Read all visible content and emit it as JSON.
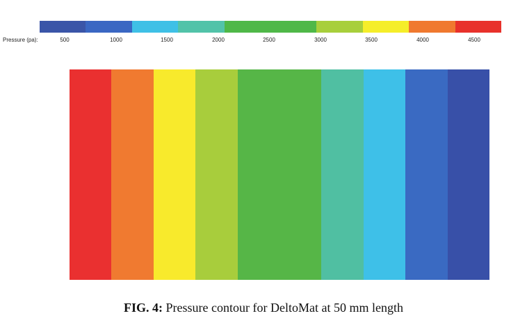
{
  "legend": {
    "label": "Pressure (pa):",
    "ticks": [
      "500",
      "1000",
      "1500",
      "2000",
      "2500",
      "3000",
      "3500",
      "4000",
      "4500"
    ],
    "colors": [
      "#3a55a8",
      "#3a67c3",
      "#3fc0e6",
      "#52c3a9",
      "#4fb848",
      "#4fb848",
      "#a8cf3c",
      "#f5ee2a",
      "#f0792f",
      "#e8312b"
    ]
  },
  "contour": {
    "bands": [
      {
        "name": "contour-band-red",
        "color": "#ea3030",
        "weight": 1
      },
      {
        "name": "contour-band-orange",
        "color": "#f07a30",
        "weight": 1
      },
      {
        "name": "contour-band-yellow",
        "color": "#f8ea2c",
        "weight": 1
      },
      {
        "name": "contour-band-yellow-green",
        "color": "#a8cd3c",
        "weight": 1
      },
      {
        "name": "contour-band-green",
        "color": "#56b647",
        "weight": 2
      },
      {
        "name": "contour-band-teal",
        "color": "#50bfa2",
        "weight": 1
      },
      {
        "name": "contour-band-cyan",
        "color": "#3ec0e8",
        "weight": 1
      },
      {
        "name": "contour-band-blue",
        "color": "#3a6ac2",
        "weight": 1
      },
      {
        "name": "contour-band-dark-blue",
        "color": "#3850a8",
        "weight": 1
      }
    ]
  },
  "caption": {
    "label": "FIG. 4:",
    "text": "Pressure contour for DeltoMat at 50 mm length"
  }
}
